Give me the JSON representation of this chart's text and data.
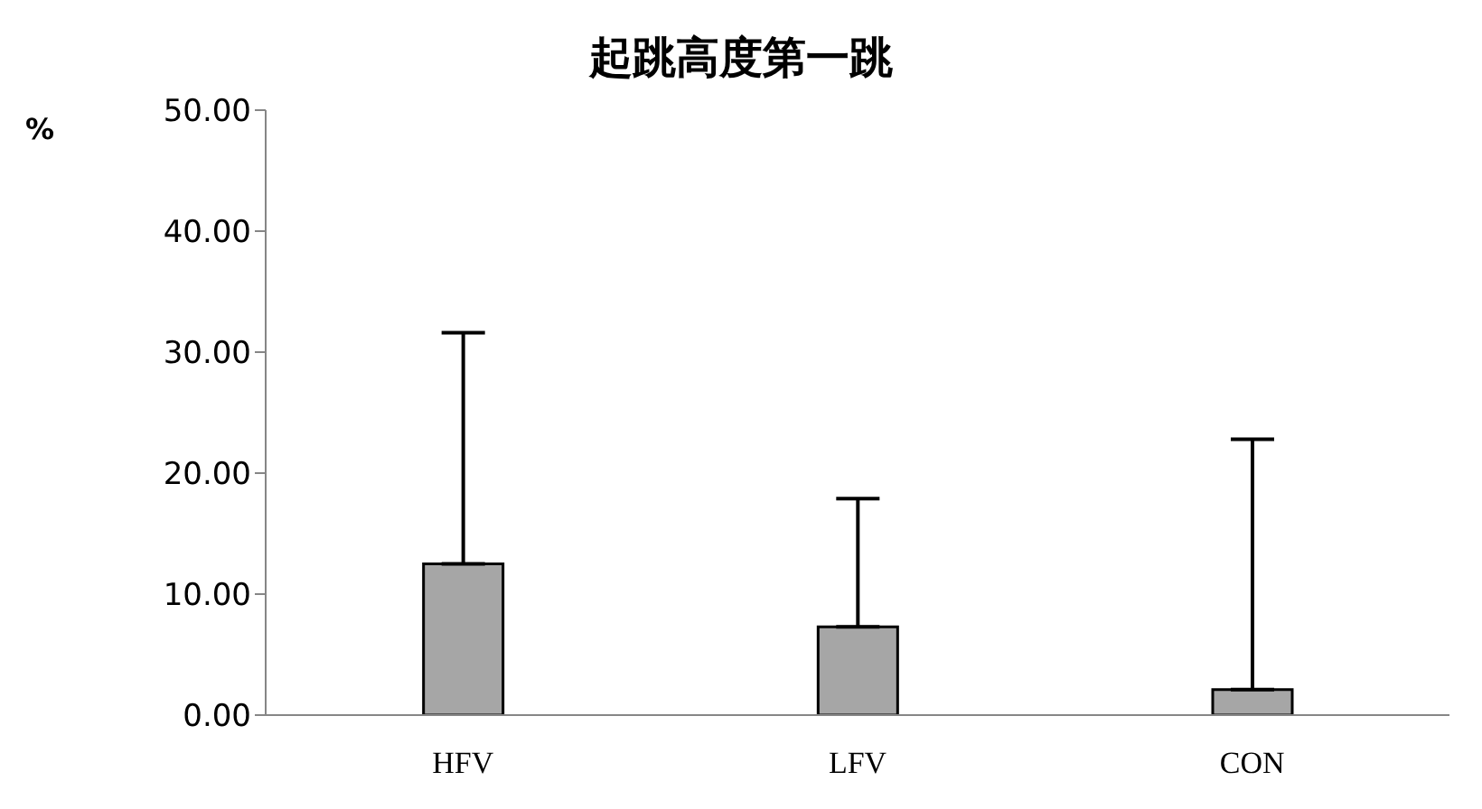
{
  "chart_data": {
    "type": "bar",
    "title": "起跳高度第一跳",
    "ylabel": "%",
    "categories": [
      "HFV",
      "LFV",
      "CON"
    ],
    "values": [
      12.5,
      7.3,
      2.1
    ],
    "errors": [
      [
        12.5,
        31.6
      ],
      [
        7.3,
        17.9
      ],
      [
        2.1,
        22.8
      ]
    ],
    "color": "#a6a6a6",
    "ylim": [
      0,
      50
    ],
    "yticks": [
      {
        "value": 0,
        "label": "0.00"
      },
      {
        "value": 10,
        "label": "10.00"
      },
      {
        "value": 20,
        "label": "20.00"
      },
      {
        "value": 30,
        "label": "30.00"
      },
      {
        "value": 40,
        "label": "40.00"
      },
      {
        "value": 50,
        "label": "50.00"
      }
    ],
    "grid": false,
    "legend": false
  }
}
